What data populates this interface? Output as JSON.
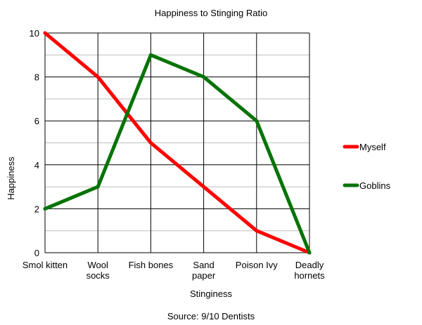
{
  "chart_data": {
    "type": "line",
    "title": "Happiness to Stinging Ratio",
    "xlabel": "Stinginess",
    "ylabel": "Happiness",
    "source": "Source: 9/10 Dentists",
    "categories": [
      [
        "Smol kitten"
      ],
      [
        "Wool",
        "socks"
      ],
      [
        "Fish bones"
      ],
      [
        "Sand",
        "paper"
      ],
      [
        "Poison Ivy"
      ],
      [
        "Deadly",
        "hornets"
      ]
    ],
    "ylim": [
      0,
      10
    ],
    "yticks": [
      0,
      2,
      4,
      6,
      8,
      10
    ],
    "grid": true,
    "legend_position": "right",
    "series": [
      {
        "name": "Myself",
        "color": "#ff0000",
        "values": [
          10,
          8,
          5,
          3,
          1,
          0
        ]
      },
      {
        "name": "Goblins",
        "color": "#067306",
        "values": [
          2,
          3,
          9,
          8,
          6,
          0
        ]
      }
    ]
  }
}
